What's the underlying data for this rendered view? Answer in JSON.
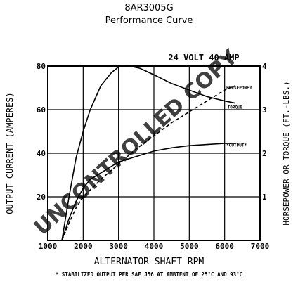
{
  "chart_data": {
    "type": "line",
    "title": "8AR3005G",
    "subtitle": "Performance Curve",
    "rating": "24 VOLT  40 AMP",
    "xlabel": "ALTERNATOR SHAFT RPM",
    "ylabel_left": "OUTPUT CURRENT (AMPERES)",
    "ylabel_right": "HORSEPOWER OR TORQUE (FT.-LBS.)",
    "footnote": "* STABILIZED OUTPUT PER SAE J56 AT AMBIENT OF 25°C AND 93°C",
    "watermark": "UNCONTROLLED COPY",
    "xlim": [
      1000,
      7000
    ],
    "ylim_left": [
      0,
      80
    ],
    "ylim_right": [
      0,
      4
    ],
    "x_ticks": [
      "1000",
      "2000",
      "3000",
      "4000",
      "5000",
      "6000",
      "7000"
    ],
    "y_ticks_left": [
      "20",
      "40",
      "60",
      "80"
    ],
    "y_ticks_right": [
      "1",
      "2",
      "3",
      "4"
    ],
    "grid": true,
    "series": [
      {
        "name": "*OUTPUT*",
        "axis": "left",
        "style": "solid",
        "x": [
          1400,
          1600,
          1800,
          2000,
          2200,
          2500,
          3000,
          3500,
          4000,
          4500,
          5000,
          5500,
          6000,
          6300
        ],
        "y": [
          0,
          10,
          18,
          24,
          28,
          31,
          36,
          38.5,
          41,
          42.5,
          43.5,
          44,
          44.5,
          44.5
        ]
      },
      {
        "name": "HORSEPOWER",
        "axis": "right",
        "style": "dashed",
        "x": [
          1400,
          1600,
          1800,
          2000,
          2500,
          3000,
          3500,
          4000,
          4500,
          5000,
          5500,
          6000,
          6300
        ],
        "y": [
          0,
          0.4,
          0.75,
          1.0,
          1.4,
          1.75,
          2.1,
          2.4,
          2.7,
          2.95,
          3.2,
          3.45,
          3.55
        ]
      },
      {
        "name": "TORQUE",
        "axis": "right",
        "style": "solid",
        "x": [
          1400,
          1600,
          1800,
          2000,
          2200,
          2500,
          2800,
          3000,
          3300,
          3600,
          4000,
          4500,
          5000,
          5500,
          6000,
          6300
        ],
        "y": [
          0,
          1.0,
          1.9,
          2.5,
          3.0,
          3.55,
          3.85,
          3.98,
          4.0,
          3.95,
          3.8,
          3.6,
          3.45,
          3.3,
          3.2,
          3.15
        ]
      }
    ],
    "series_labels": [
      {
        "text": "HORSEPOWER",
        "anchor_x": 6050,
        "anchor_y_right": 3.52
      },
      {
        "text": "TORQUE",
        "anchor_x": 6080,
        "anchor_y_right": 3.07
      },
      {
        "text": "*OUTPUT*",
        "anchor_x": 6050,
        "anchor_y_right": 2.2
      }
    ]
  }
}
